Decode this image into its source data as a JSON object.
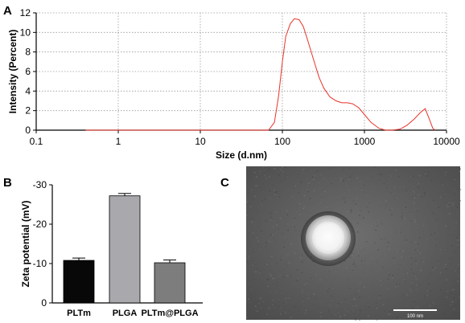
{
  "panels": [
    {
      "letter": "A"
    },
    {
      "letter": "B"
    },
    {
      "letter": "C"
    }
  ],
  "chart_data": [
    {
      "type": "line",
      "panel": "A",
      "xlabel": "Size (d.nm)",
      "ylabel": "Intensity (Percent)",
      "xscale": "log",
      "xlim": [
        0.1,
        10000
      ],
      "ylim": [
        0,
        12
      ],
      "xticks": [
        "0.1",
        "1",
        "10",
        "100",
        "1000",
        "10000"
      ],
      "yticks": [
        "0",
        "2",
        "4",
        "6",
        "8",
        "10",
        "12"
      ],
      "grid": "dotted",
      "color": "#e8332a",
      "series": [
        {
          "x": [
            0.4,
            1,
            10,
            50,
            68,
            80,
            90,
            100,
            110,
            125,
            140,
            160,
            180,
            200,
            240,
            280,
            320,
            380,
            450,
            530,
            620,
            720,
            850,
            1000,
            1200,
            1500,
            1800,
            2200,
            2700,
            3300,
            4000,
            4800,
            5500,
            6200,
            6800,
            7300
          ],
          "y": [
            0,
            0,
            0,
            0,
            0.0,
            0.8,
            3.5,
            7.0,
            9.6,
            10.9,
            11.4,
            11.3,
            10.6,
            9.4,
            7.2,
            5.4,
            4.3,
            3.4,
            3.0,
            2.8,
            2.8,
            2.7,
            2.3,
            1.6,
            0.8,
            0.2,
            0.0,
            0.0,
            0.1,
            0.5,
            1.1,
            1.8,
            2.2,
            1.1,
            0.2,
            0.0
          ]
        }
      ]
    },
    {
      "type": "bar",
      "panel": "B",
      "ylabel": "Zeta potential (mV)",
      "ylim": [
        0,
        -30
      ],
      "yticks": [
        "-30",
        "-20",
        "-10",
        "0"
      ],
      "categories": [
        "PLTm",
        "PLGA",
        "PLTm@PLGA"
      ],
      "values": [
        -10.8,
        -27.2,
        -10.2
      ],
      "errors": [
        0.6,
        0.6,
        0.7
      ],
      "colors": [
        "#080808",
        "#a8a8ad",
        "#7d7d7d"
      ]
    }
  ],
  "tem": {
    "scale_bar_label": "100 nm"
  }
}
